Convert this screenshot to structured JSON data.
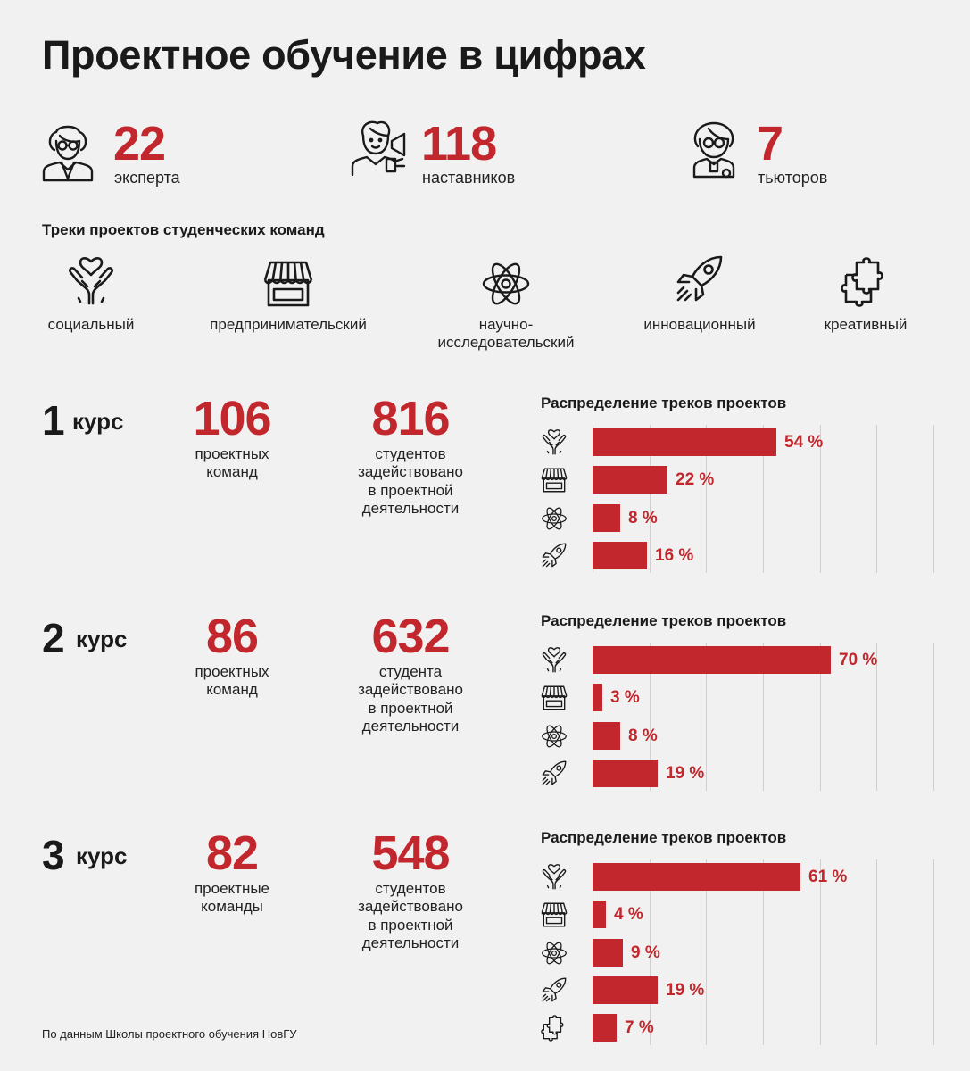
{
  "title": "Проектное обучение в цифрах",
  "stats": [
    {
      "icon": "expert-icon",
      "value": "22",
      "label": "эксперта"
    },
    {
      "icon": "mentor-megaphone-icon",
      "value": "118",
      "label": "наставников"
    },
    {
      "icon": "tutor-icon",
      "value": "7",
      "label": "тьюторов"
    }
  ],
  "tracks": {
    "title": "Треки проектов студенческих команд",
    "items": [
      {
        "icon": "heart-hands-icon",
        "label": "социальный"
      },
      {
        "icon": "shop-icon",
        "label": "предпринимательский"
      },
      {
        "icon": "atom-icon",
        "label": "научно-исследовательский",
        "line1": "научно-",
        "line2": "исследовательский"
      },
      {
        "icon": "rocket-icon",
        "label": "инновационный"
      },
      {
        "icon": "puzzle-icon",
        "label": "креативный"
      }
    ]
  },
  "courses": [
    {
      "num": "1",
      "word": "курс",
      "teams_value": "106",
      "teams_l1": "проектных",
      "teams_l2": "команд",
      "students_value": "816",
      "students_l1": "студентов",
      "students_l2": "задействовано",
      "students_l3": "в проектной",
      "students_l4": "деятельности",
      "dist_title": "Распределение треков проектов"
    },
    {
      "num": "2",
      "word": "курс",
      "teams_value": "86",
      "teams_l1": "проектных",
      "teams_l2": "команд",
      "students_value": "632",
      "students_l1": "студента",
      "students_l2": "задействовано",
      "students_l3": "в проектной",
      "students_l4": "деятельности",
      "dist_title": "Распределение треков проектов"
    },
    {
      "num": "3",
      "word": "курс",
      "teams_value": "82",
      "teams_l1": "проектные",
      "teams_l2": "команды",
      "students_value": "548",
      "students_l1": "студентов",
      "students_l2": "задействовано",
      "students_l3": "в проектной",
      "students_l4": "деятельности",
      "dist_title": "Распределение треков проектов"
    }
  ],
  "chart_data": [
    {
      "type": "bar",
      "orientation": "horizontal",
      "title": "Распределение треков проектов",
      "categories": [
        "heart-hands-icon",
        "shop-icon",
        "atom-icon",
        "rocket-icon"
      ],
      "values": [
        54,
        22,
        8,
        16
      ],
      "labels": [
        "54 %",
        "22 %",
        "8 %",
        "16 %"
      ],
      "xlim": [
        0,
        100
      ],
      "grid": true
    },
    {
      "type": "bar",
      "orientation": "horizontal",
      "title": "Распределение треков проектов",
      "categories": [
        "heart-hands-icon",
        "shop-icon",
        "atom-icon",
        "rocket-icon"
      ],
      "values": [
        70,
        3,
        8,
        19
      ],
      "labels": [
        "70 %",
        "3 %",
        "8 %",
        "19 %"
      ],
      "xlim": [
        0,
        100
      ],
      "grid": true
    },
    {
      "type": "bar",
      "orientation": "horizontal",
      "title": "Распределение треков проектов",
      "categories": [
        "heart-hands-icon",
        "shop-icon",
        "atom-icon",
        "rocket-icon",
        "puzzle-icon"
      ],
      "values": [
        61,
        4,
        9,
        19,
        7
      ],
      "labels": [
        "61 %",
        "4 %",
        "9 %",
        "19 %",
        "7 %"
      ],
      "xlim": [
        0,
        100
      ],
      "grid": true
    }
  ],
  "colors": {
    "accent": "#c1272d",
    "background": "#f1f1f1",
    "text": "#1a1a1a",
    "grid": "#cfcfcf"
  },
  "source": "По данным Школы проектного обучения НовГУ"
}
